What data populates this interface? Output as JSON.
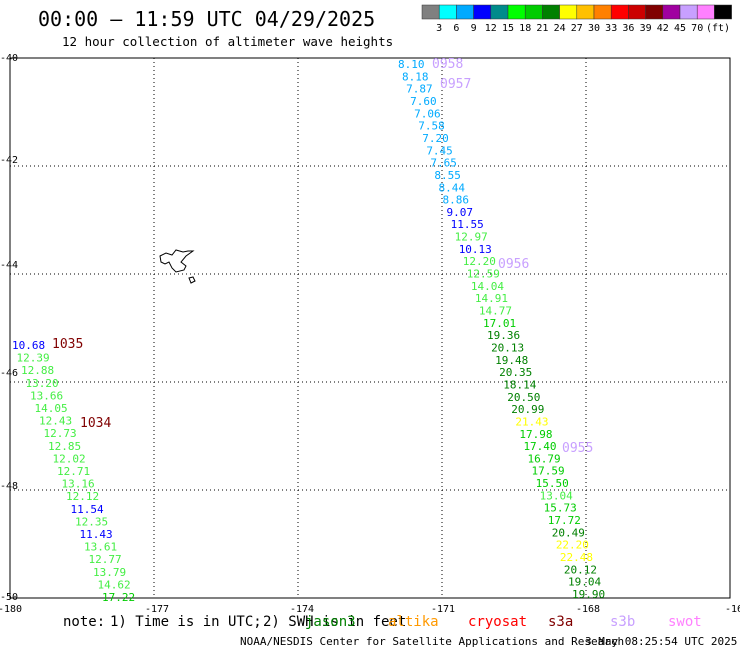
{
  "header": {
    "title": "00:00 – 11:59 UTC 04/29/2025",
    "subtitle": "12 hour collection of altimeter wave heights"
  },
  "legend": {
    "unit": "(ft)",
    "colors": [
      "#808080",
      "#00ffff",
      "#00aaff",
      "#0000ff",
      "#008b8b",
      "#00ff00",
      "#00cc00",
      "#008000",
      "#ffff00",
      "#ffc000",
      "#ff8000",
      "#ff0000",
      "#cc0000",
      "#800000",
      "#a000a0",
      "#c8a0ff",
      "#ff80ff",
      "#000000"
    ],
    "labels": [
      "3",
      "6",
      "9",
      "12",
      "15",
      "18",
      "21",
      "24",
      "27",
      "30",
      "33",
      "36",
      "39",
      "42",
      "45",
      "70"
    ]
  },
  "map": {
    "lon_ticks": [
      "-180",
      "-177",
      "-174",
      "-171",
      "-168",
      "-16"
    ],
    "lat_ticks": [
      "-40",
      "-42",
      "-44",
      "-46",
      "-48",
      "-50"
    ],
    "lon_range": [
      -180,
      -165
    ],
    "lat_range": [
      -40,
      -50
    ]
  },
  "tracks": {
    "track_a": [
      "8.10",
      "8.18",
      "7.87",
      "7.60",
      "7.06",
      "7.58",
      "7.20",
      "7.45",
      "7.65",
      "8.55",
      "8.44",
      "8.86",
      "9.07",
      "11.55",
      "12.97",
      "10.13",
      "12.20",
      "12.59",
      "14.04",
      "14.91",
      "14.77",
      "17.01",
      "19.36",
      "20.13",
      "19.48",
      "20.35",
      "18.14",
      "20.50",
      "20.99",
      "21.43",
      "17.98",
      "17.40",
      "16.79",
      "17.59",
      "15.50",
      "13.04",
      "15.73",
      "17.72",
      "20.49",
      "22.20",
      "22.48",
      "20.12",
      "19.04",
      "19.90"
    ],
    "track_b": [
      "10.68",
      "12.39",
      "12.88",
      "13.20",
      "13.66",
      "14.05",
      "12.43",
      "12.73",
      "12.85",
      "12.02",
      "12.71",
      "13.16",
      "12.12",
      "11.54",
      "12.35",
      "11.43",
      "13.61",
      "12.77",
      "13.79",
      "14.62",
      "17.22"
    ],
    "time_a": [
      "0958",
      "0957",
      "0956",
      "0955"
    ],
    "time_b": [
      "1035",
      "1034"
    ],
    "time_a_colors": [
      "#c8a0ff",
      "#c8a0ff",
      "#c8a0ff",
      "#c8a0ff"
    ],
    "time_b_colors": [
      "#800000",
      "#800000"
    ]
  },
  "footer": {
    "note_prefix": "note:",
    "note_1": "1) Time is in UTC;",
    "note_2": "2) SWH is in feet",
    "satellites": [
      {
        "name": "jason3",
        "color": "#008000"
      },
      {
        "name": "altika",
        "color": "#ff9900"
      },
      {
        "name": "cryosat",
        "color": "#ff0000"
      },
      {
        "name": "s3a",
        "color": "#800000"
      },
      {
        "name": "s3b",
        "color": "#c8a0ff"
      },
      {
        "name": "swot",
        "color": "#ff80ff"
      }
    ],
    "credit": "NOAA/NESDIS Center for Satellite Applications and Research",
    "timestamp": "3 May 08:25:54 UTC 2025"
  }
}
